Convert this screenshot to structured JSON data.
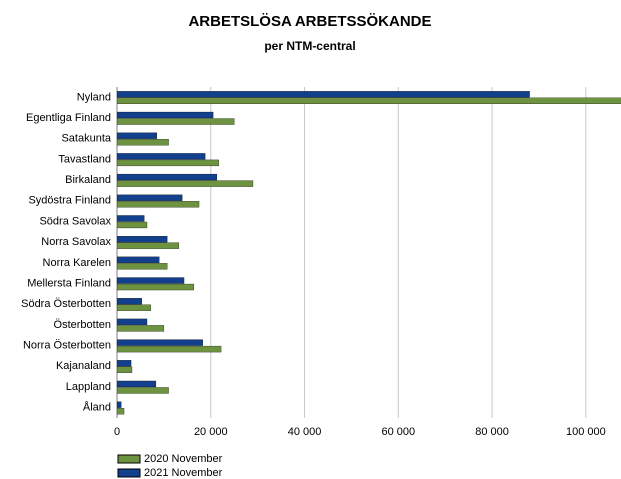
{
  "chart_data": {
    "type": "barh",
    "title": "ARBETSLÖSA ARBETSSÖKANDE",
    "subtitle": "per NTM-central",
    "categories": [
      "Nyland",
      "Egentliga Finland",
      "Satakunta",
      "Tavastland",
      "Birkaland",
      "Sydöstra Finland",
      "Södra Savolax",
      "Norra Savolax",
      "Norra Karelen",
      "Mellersta Finland",
      "Södra Österbotten",
      "Österbotten",
      "Norra Österbotten",
      "Kajanaland",
      "Lappland",
      "Åland"
    ],
    "series": [
      {
        "name": "2020 November",
        "color": "#6e9340",
        "values": [
          108000,
          25000,
          11000,
          21700,
          29000,
          17500,
          6400,
          13200,
          10700,
          16400,
          7200,
          10000,
          22200,
          3200,
          11000,
          1500
        ]
      },
      {
        "name": "2021 November",
        "color": "#12408c",
        "values": [
          88000,
          20500,
          8500,
          18800,
          21300,
          13900,
          5800,
          10700,
          9000,
          14300,
          5300,
          6400,
          18300,
          3000,
          8300,
          900
        ]
      }
    ],
    "xlim": [
      0,
      107500
    ],
    "xticks": [
      0,
      {
        "value": 20000,
        "label": "20 000"
      },
      {
        "value": 40000,
        "label": "40 000"
      },
      {
        "value": 60000,
        "label": "60 000"
      },
      {
        "value": 80000,
        "label": "80 000"
      },
      {
        "value": 100000,
        "label": "100 000"
      }
    ],
    "grid": true
  }
}
